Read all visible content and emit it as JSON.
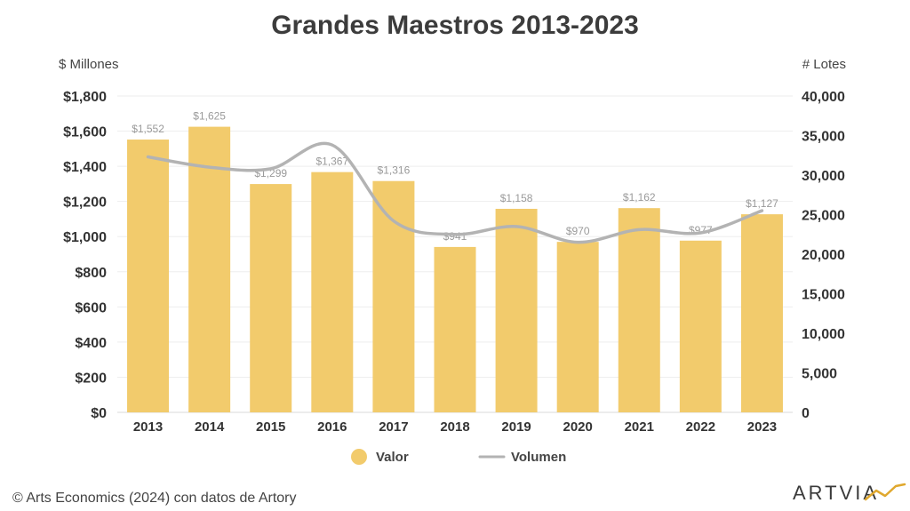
{
  "chart_data": {
    "type": "bar",
    "title": "Grandes Maestros 2013-2023",
    "ylabel": "$ Millones",
    "y2label": "# Lotes",
    "categories": [
      "2013",
      "2014",
      "2015",
      "2016",
      "2017",
      "2018",
      "2019",
      "2020",
      "2021",
      "2022",
      "2023"
    ],
    "series": [
      {
        "name": "Valor",
        "type": "bar",
        "axis": "left",
        "color": "#f2cb6c",
        "values": [
          1552,
          1625,
          1299,
          1367,
          1316,
          941,
          1158,
          970,
          1162,
          977,
          1127
        ],
        "labels": [
          "$1,552",
          "$1,625",
          "$1,299",
          "$1,367",
          "$1,316",
          "$941",
          "$1,158",
          "$970",
          "$1,162",
          "$977",
          "$1,127"
        ]
      },
      {
        "name": "Volumen",
        "type": "line",
        "axis": "right",
        "color": "#b3b3b3",
        "values": [
          32300,
          31000,
          30800,
          33800,
          24200,
          22500,
          23500,
          21500,
          23100,
          22700,
          25500
        ]
      }
    ],
    "ylim": [
      0,
      1800
    ],
    "y2lim": [
      0,
      40000
    ],
    "yticks": [
      "$0",
      "$200",
      "$400",
      "$600",
      "$800",
      "$1,000",
      "$1,200",
      "$1,400",
      "$1,600",
      "$1,800"
    ],
    "y2ticks": [
      "0",
      "5,000",
      "10,000",
      "15,000",
      "20,000",
      "25,000",
      "30,000",
      "35,000",
      "40,000"
    ],
    "grid": true,
    "legend": "bottom-center"
  },
  "source": "©  Arts Economics (2024) con datos de Artory",
  "logo": {
    "text": "ARTVIA",
    "accent_color": "#e0a82e"
  }
}
